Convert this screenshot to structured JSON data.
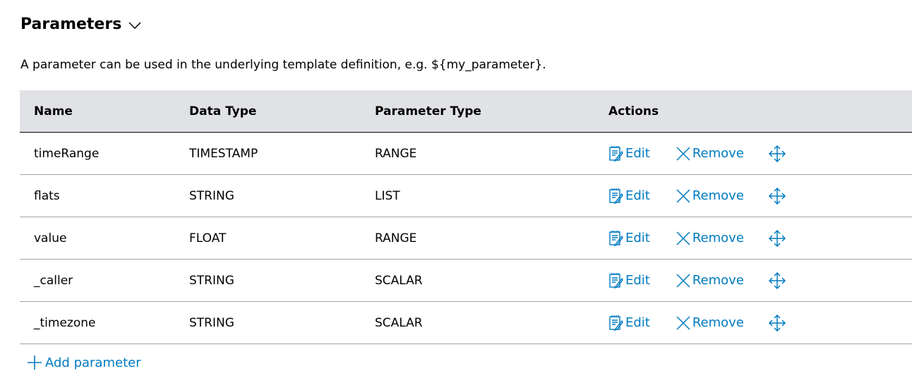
{
  "section": {
    "title": "Parameters",
    "description": "A parameter can be used in the underlying template definition, e.g. ${my_parameter}."
  },
  "table": {
    "headers": [
      "Name",
      "Data Type",
      "Parameter Type",
      "Actions"
    ],
    "rows": [
      {
        "name": "timeRange",
        "data_type": "TIMESTAMP",
        "parameter_type": "RANGE"
      },
      {
        "name": "flats",
        "data_type": "STRING",
        "parameter_type": "LIST"
      },
      {
        "name": "value",
        "data_type": "FLOAT",
        "parameter_type": "RANGE"
      },
      {
        "name": "_caller",
        "data_type": "STRING",
        "parameter_type": "SCALAR"
      },
      {
        "name": "_timezone",
        "data_type": "STRING",
        "parameter_type": "SCALAR"
      }
    ],
    "edit_label": "Edit",
    "remove_label": "Remove"
  },
  "add_label": "Add parameter",
  "colors": {
    "accent": "#007bc0",
    "header_bg": "#e0e2e5"
  }
}
